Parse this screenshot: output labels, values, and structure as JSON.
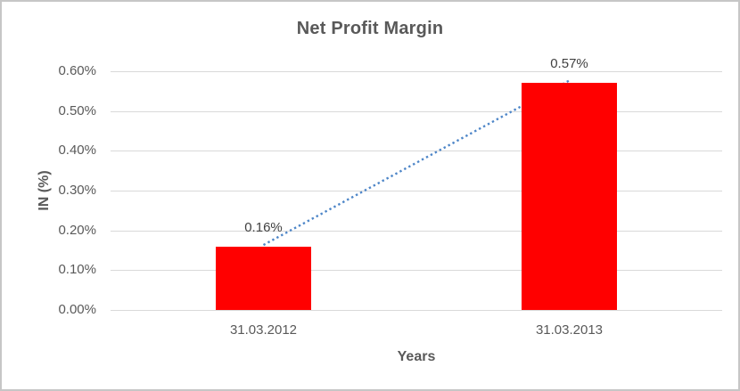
{
  "window": {
    "background_color": "#ffffff",
    "frame_border_color": "#c6c6c6"
  },
  "chart_data": {
    "type": "bar",
    "title": "Net Profit Margin",
    "xlabel": "Years",
    "ylabel": "IN (%)",
    "categories": [
      "31.03.2012",
      "31.03.2013"
    ],
    "values": [
      0.16,
      0.57
    ],
    "value_labels": [
      "0.16%",
      "0.57%"
    ],
    "ylim": [
      0,
      0.6
    ],
    "y_ticks": [
      {
        "value": 0.6,
        "label": "0.60%"
      },
      {
        "value": 0.5,
        "label": "0.50%"
      },
      {
        "value": 0.4,
        "label": "0.40%"
      },
      {
        "value": 0.3,
        "label": "0.30%"
      },
      {
        "value": 0.2,
        "label": "0.20%"
      },
      {
        "value": 0.1,
        "label": "0.10%"
      },
      {
        "value": 0.0,
        "label": "0.00%"
      }
    ],
    "grid": true,
    "legend": "none",
    "colors": {
      "bar": "#ff0000",
      "trendline": "#4e86c8",
      "gridline": "#d9d9d9",
      "axis_text": "#595959",
      "data_label_text": "#404040",
      "title_text": "#595959"
    },
    "trendline": {
      "style": "dotted",
      "connects": "bar tops (0.16% to 0.57%)"
    }
  }
}
